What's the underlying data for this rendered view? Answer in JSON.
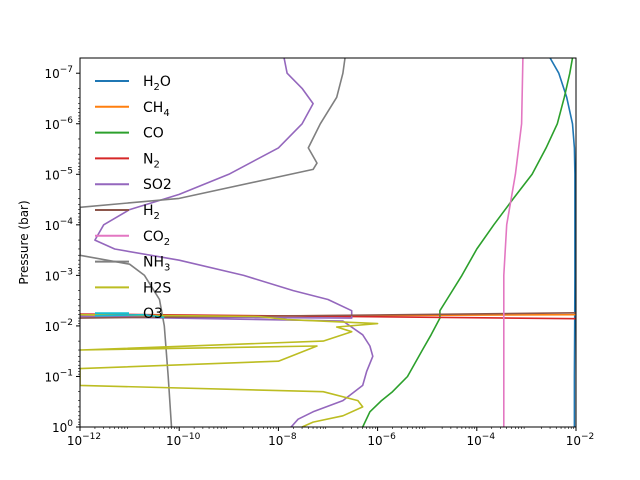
{
  "chart_data": {
    "type": "line",
    "title": "",
    "xlabel": "",
    "ylabel": "Pressure (bar)",
    "xscale": "log",
    "yscale": "log",
    "y_inverted": true,
    "xlim": [
      1e-12,
      0.01
    ],
    "ylim": [
      1,
      5e-08
    ],
    "grid": false,
    "legend_position": "top-left",
    "x_ticks": [
      {
        "value": 1e-12,
        "base": "10",
        "exp": "−12"
      },
      {
        "value": 1e-10,
        "base": "10",
        "exp": "−10"
      },
      {
        "value": 1e-08,
        "base": "10",
        "exp": "−8"
      },
      {
        "value": 1e-06,
        "base": "10",
        "exp": "−6"
      },
      {
        "value": 0.0001,
        "base": "10",
        "exp": "−4"
      },
      {
        "value": 0.01,
        "base": "10",
        "exp": "−2"
      }
    ],
    "y_ticks": [
      {
        "value": 1,
        "base": "10",
        "exp": "0"
      },
      {
        "value": 0.1,
        "base": "10",
        "exp": "−1"
      },
      {
        "value": 0.01,
        "base": "10",
        "exp": "−2"
      },
      {
        "value": 0.001,
        "base": "10",
        "exp": "−3"
      },
      {
        "value": 0.0001,
        "base": "10",
        "exp": "−4"
      },
      {
        "value": 1e-05,
        "base": "10",
        "exp": "−5"
      },
      {
        "value": 1e-06,
        "base": "10",
        "exp": "−6"
      },
      {
        "value": 1e-07,
        "base": "10",
        "exp": "−7"
      }
    ],
    "series": [
      {
        "name": "H2O",
        "label_main": "H",
        "label_sub": "2",
        "label_tail": "O",
        "color": "#1f77b4",
        "points": [
          [
            0.003,
            5e-08
          ],
          [
            0.0045,
            1e-07
          ],
          [
            0.0065,
            3e-07
          ],
          [
            0.0085,
            1e-06
          ],
          [
            0.0093,
            3e-06
          ],
          [
            0.0095,
            1e-05
          ],
          [
            0.0095,
            0.001
          ],
          [
            0.0094,
            0.01
          ],
          [
            0.0093,
            0.1
          ],
          [
            0.0093,
            1
          ]
        ]
      },
      {
        "name": "CH4",
        "label_main": "CH",
        "label_sub": "4",
        "label_tail": "",
        "color": "#ff7f0e",
        "points": [
          [
            1e-12,
            0.0065
          ],
          [
            0.01,
            0.006
          ]
        ]
      },
      {
        "name": "CO",
        "label_main": "CO",
        "label_sub": "",
        "label_tail": "",
        "color": "#2ca02c",
        "points": [
          [
            0.0085,
            5e-08
          ],
          [
            0.0075,
            1e-07
          ],
          [
            0.0058,
            3e-07
          ],
          [
            0.0042,
            1e-06
          ],
          [
            0.0025,
            3e-06
          ],
          [
            0.0013,
            1e-05
          ],
          [
            0.00055,
            3e-05
          ],
          [
            0.00022,
            0.0001
          ],
          [
            0.0001,
            0.0003
          ],
          [
            5e-05,
            0.001
          ],
          [
            2.5e-05,
            0.003
          ],
          [
            1.8e-05,
            0.005
          ],
          [
            1.8e-05,
            0.007
          ],
          [
            1.2e-05,
            0.015
          ],
          [
            8e-06,
            0.03
          ],
          [
            4e-06,
            0.1
          ],
          [
            2e-06,
            0.2
          ],
          [
            1.2e-06,
            0.3
          ],
          [
            7e-07,
            0.5
          ],
          [
            5e-07,
            1
          ]
        ]
      },
      {
        "name": "N2",
        "label_main": "N",
        "label_sub": "2",
        "label_tail": "",
        "color": "#d62728",
        "points": [
          [
            1e-12,
            0.0058
          ],
          [
            0.01,
            0.0072
          ]
        ]
      },
      {
        "name": "SO2",
        "label_main": "SO2",
        "label_sub": "",
        "label_tail": "",
        "color": "#9467bd",
        "points": [
          [
            1.3e-08,
            5e-08
          ],
          [
            1.5e-08,
            1e-07
          ],
          [
            3e-08,
            2e-07
          ],
          [
            5e-08,
            4e-07
          ],
          [
            3e-08,
            1e-06
          ],
          [
            1e-08,
            3e-06
          ],
          [
            1e-09,
            1e-05
          ],
          [
            1e-10,
            2.5e-05
          ],
          [
            1e-11,
            5e-05
          ],
          [
            3e-12,
            0.0001
          ],
          [
            2e-12,
            0.0002
          ],
          [
            5e-12,
            0.0003
          ],
          [
            1e-10,
            0.0005
          ],
          [
            2e-09,
            0.001
          ],
          [
            2e-08,
            0.002
          ],
          [
            1e-07,
            0.003
          ],
          [
            3e-07,
            0.005
          ],
          [
            3e-07,
            0.007
          ],
          [
            1e-12,
            0.0065
          ],
          [
            2e-07,
            0.008
          ],
          [
            5e-07,
            0.015
          ],
          [
            7e-07,
            0.025
          ],
          [
            8e-07,
            0.04
          ],
          [
            6e-07,
            0.08
          ],
          [
            5e-07,
            0.15
          ],
          [
            2e-07,
            0.3
          ],
          [
            5e-08,
            0.5
          ],
          [
            2.5e-08,
            0.7
          ],
          [
            1.8e-08,
            1
          ]
        ]
      },
      {
        "name": "H2",
        "label_main": "H",
        "label_sub": "2",
        "label_tail": "",
        "color": "#8c564b",
        "points": [
          [
            1e-12,
            0.007
          ],
          [
            0.01,
            0.0055
          ]
        ]
      },
      {
        "name": "CO2",
        "label_main": "CO",
        "label_sub": "2",
        "label_tail": "",
        "color": "#e377c2",
        "points": [
          [
            0.00085,
            5e-08
          ],
          [
            0.0008,
            1e-06
          ],
          [
            0.0006,
            1e-05
          ],
          [
            0.0004,
            0.0001
          ],
          [
            0.00035,
            0.001
          ],
          [
            0.00035,
            0.01
          ],
          [
            0.00035,
            0.1
          ],
          [
            0.00035,
            1
          ]
        ]
      },
      {
        "name": "NH3",
        "label_main": "NH",
        "label_sub": "3",
        "label_tail": "",
        "color": "#7f7f7f",
        "points": [
          [
            2.2e-07,
            5e-08
          ],
          [
            2e-07,
            1e-07
          ],
          [
            1.5e-07,
            3e-07
          ],
          [
            7e-08,
            1e-06
          ],
          [
            4e-08,
            3e-06
          ],
          [
            6e-08,
            6e-06
          ],
          [
            5e-08,
            8e-06
          ],
          [
            1e-10,
            3e-05
          ],
          [
            1e-12,
            4.5e-05
          ],
          [
            1e-12,
            0.0004
          ],
          [
            1e-11,
            0.0006
          ],
          [
            2e-11,
            0.001
          ],
          [
            4e-11,
            0.003
          ],
          [
            5e-11,
            0.01
          ],
          [
            6e-11,
            0.1
          ],
          [
            7e-11,
            1
          ]
        ]
      },
      {
        "name": "H2S",
        "label_main": "H2S",
        "label_sub": "",
        "label_tail": "",
        "color": "#bcbd22",
        "points": [
          [
            1e-12,
            0.006
          ],
          [
            4e-09,
            0.0065
          ],
          [
            1.5e-08,
            0.0075
          ],
          [
            1e-06,
            0.009
          ],
          [
            1.5e-07,
            0.0105
          ],
          [
            3e-07,
            0.013
          ],
          [
            8e-08,
            0.02
          ],
          [
            1e-12,
            0.03
          ],
          [
            6e-08,
            0.025
          ],
          [
            1e-08,
            0.05
          ],
          [
            1e-12,
            0.07
          ],
          [
            1e-12,
            0.15
          ],
          [
            8e-08,
            0.2
          ],
          [
            4e-07,
            0.3
          ],
          [
            5e-07,
            0.4
          ],
          [
            2e-07,
            0.6
          ],
          [
            5e-08,
            0.8
          ],
          [
            3e-08,
            1
          ]
        ]
      },
      {
        "name": "O3",
        "label_main": "O3",
        "label_sub": "",
        "label_tail": "",
        "color": "#17becf",
        "points": [
          [
            2e-12,
            0.0063
          ],
          [
            2e-11,
            0.006
          ],
          [
            5e-11,
            0.0068
          ]
        ]
      }
    ]
  }
}
